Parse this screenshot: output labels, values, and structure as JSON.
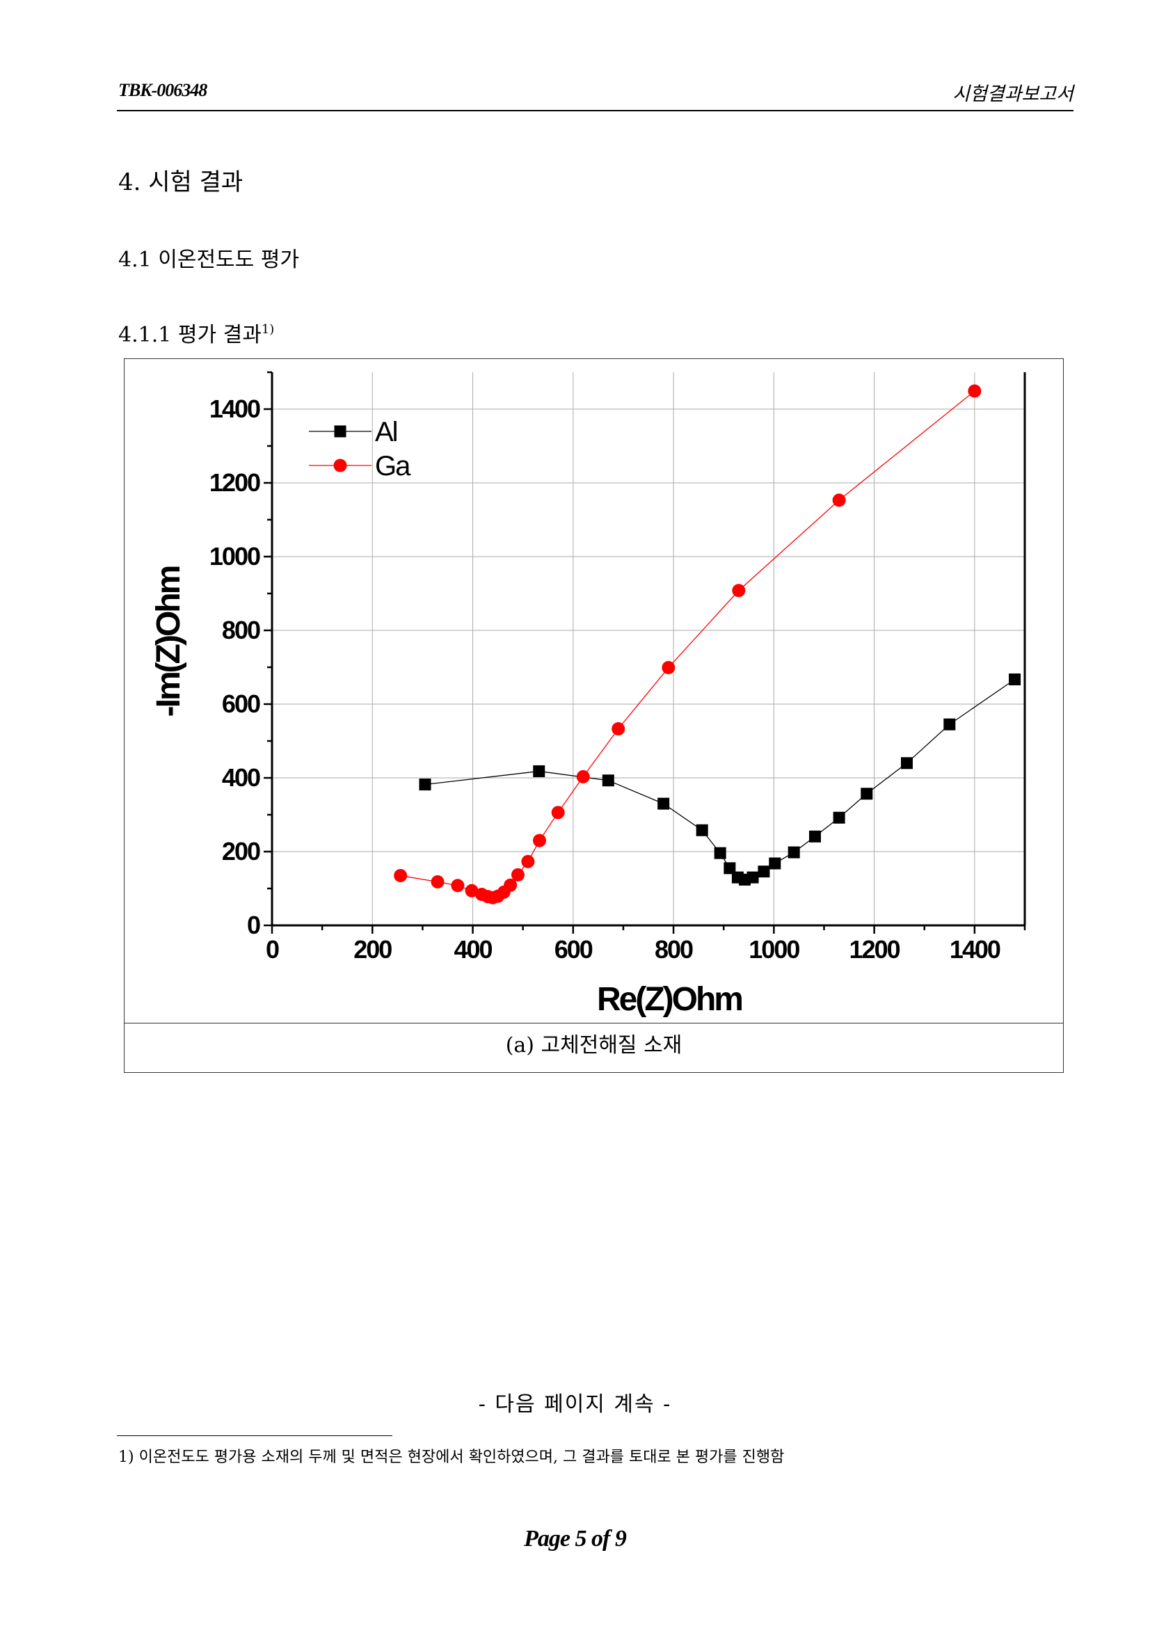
{
  "header": {
    "doc_id": "TBK-006348",
    "doc_type": "시험결과보고서"
  },
  "section": {
    "h1": "4. 시험 결과",
    "h2": "4.1 이온전도도 평가",
    "h3": "4.1.1 평가 결과",
    "h3_footnote_ref": "1)"
  },
  "figure": {
    "caption": "(a) 고체전해질 소재"
  },
  "chart_data": {
    "type": "scatter",
    "title": "",
    "xlabel": "Re(Z)Ohm",
    "ylabel": "-Im(Z)Ohm",
    "xlim": [
      0,
      1500
    ],
    "ylim": [
      0,
      1500
    ],
    "x_ticks": [
      "0",
      "200",
      "400",
      "600",
      "800",
      "1000",
      "1200",
      "1400"
    ],
    "y_ticks": [
      "0",
      "200",
      "400",
      "600",
      "800",
      "1000",
      "1200",
      "1400"
    ],
    "grid": true,
    "legend_position": "top-left",
    "series": [
      {
        "name": "Al",
        "color": "#000000",
        "marker": "square",
        "points": [
          [
            305,
            382
          ],
          [
            532,
            418
          ],
          [
            670,
            393
          ],
          [
            780,
            330
          ],
          [
            857,
            258
          ],
          [
            893,
            196
          ],
          [
            912,
            155
          ],
          [
            928,
            130
          ],
          [
            942,
            124
          ],
          [
            958,
            130
          ],
          [
            980,
            146
          ],
          [
            1002,
            168
          ],
          [
            1040,
            198
          ],
          [
            1082,
            241
          ],
          [
            1130,
            292
          ],
          [
            1185,
            357
          ],
          [
            1265,
            440
          ],
          [
            1350,
            545
          ],
          [
            1480,
            667
          ]
        ]
      },
      {
        "name": "Ga",
        "color": "#ff0000",
        "marker": "circle",
        "points": [
          [
            256,
            135
          ],
          [
            330,
            118
          ],
          [
            370,
            108
          ],
          [
            398,
            94
          ],
          [
            418,
            84
          ],
          [
            430,
            78
          ],
          [
            440,
            75
          ],
          [
            450,
            79
          ],
          [
            462,
            90
          ],
          [
            475,
            109
          ],
          [
            490,
            137
          ],
          [
            510,
            173
          ],
          [
            533,
            230
          ],
          [
            570,
            306
          ],
          [
            620,
            403
          ],
          [
            690,
            533
          ],
          [
            790,
            699
          ],
          [
            930,
            908
          ],
          [
            1130,
            1153
          ],
          [
            1400,
            1449
          ]
        ]
      }
    ]
  },
  "continuation": "- 다음 페이지 계속 -",
  "footnote": {
    "marker": "1)",
    "text": "이온전도도 평가용 소재의 두께 및 면적은 현장에서 확인하였으며, 그 결과를 토대로 본 평가를 진행함"
  },
  "page_label": "Page 5 of 9"
}
